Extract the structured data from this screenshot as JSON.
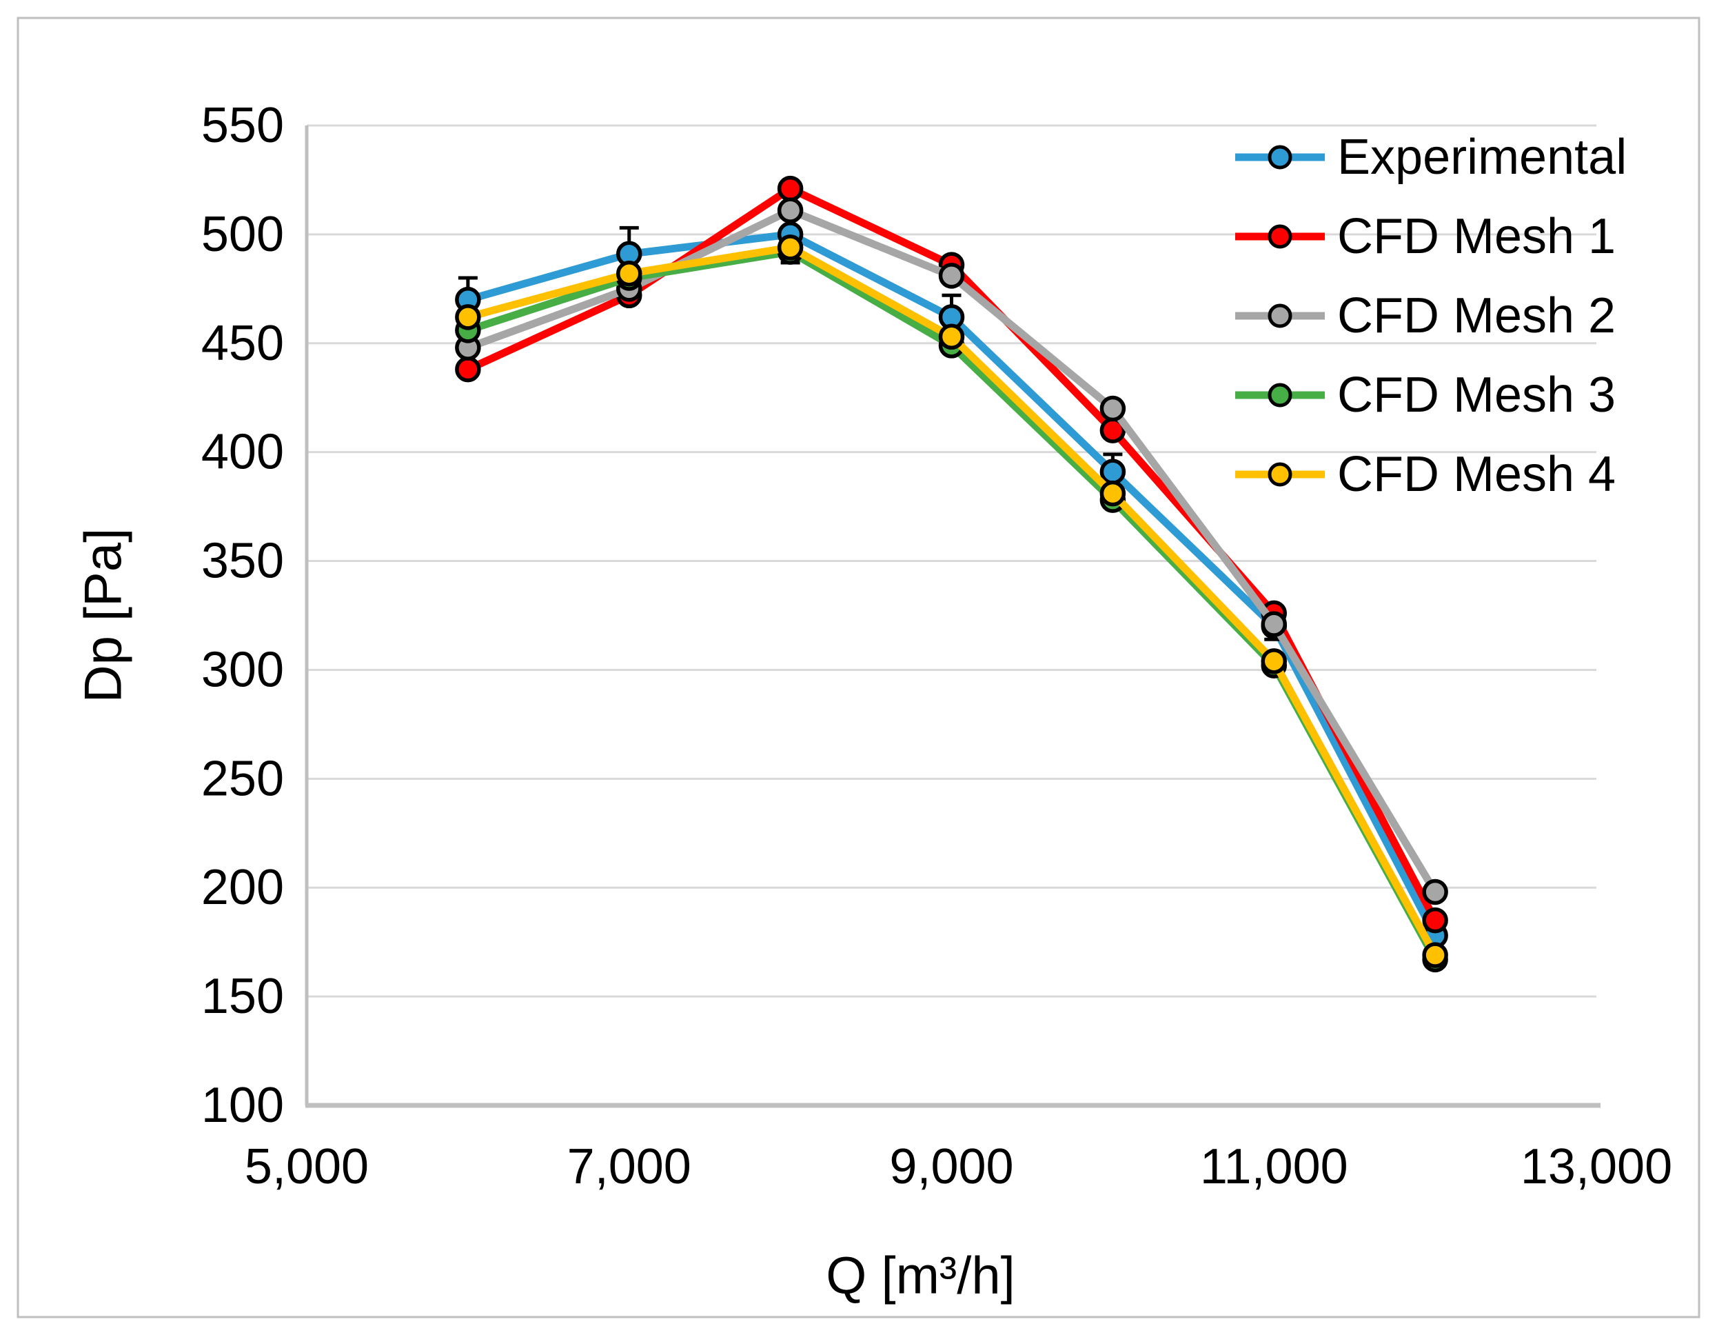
{
  "figure": {
    "border_color": "#BFBFBF",
    "background": "#FFFFFF"
  },
  "axes": {
    "x_title": "Q [m³/h]",
    "y_title": "Dp [Pa]",
    "axis_line_color": "#BFBFBF",
    "gridline_color": "#D9D9D9",
    "text_color": "#000000"
  },
  "chart_data": {
    "type": "line",
    "title": "",
    "xlabel": "Q [m³/h]",
    "ylabel": "Dp [Pa]",
    "xlim": [
      5000,
      13000
    ],
    "ylim": [
      100,
      550
    ],
    "x_ticks": [
      5000,
      7000,
      9000,
      11000,
      13000
    ],
    "x_tick_labels": [
      "5,000",
      "7,000",
      "9,000",
      "11,000",
      "13,000"
    ],
    "y_ticks": [
      100,
      150,
      200,
      250,
      300,
      350,
      400,
      450,
      500,
      550
    ],
    "grid": "horizontal-only",
    "legend_position": "inside-top-right",
    "x": [
      6000,
      7000,
      8000,
      9000,
      10000,
      11000,
      12000
    ],
    "series": [
      {
        "name": "Experimental",
        "color": "#2E9BD5",
        "marker": "circle",
        "values": [
          470,
          491,
          500,
          462,
          391,
          320,
          178
        ],
        "error_bars": [
          10,
          12,
          13,
          10,
          8,
          6,
          6
        ]
      },
      {
        "name": "CFD Mesh 1",
        "color": "#FF0000",
        "marker": "circle",
        "values": [
          438,
          472,
          521,
          486,
          410,
          326,
          185
        ]
      },
      {
        "name": "CFD Mesh 2",
        "color": "#A6A6A6",
        "marker": "circle",
        "values": [
          448,
          475,
          511,
          481,
          420,
          321,
          198
        ]
      },
      {
        "name": "CFD Mesh 3",
        "color": "#47AD45",
        "marker": "circle",
        "values": [
          456,
          480,
          492,
          449,
          378,
          302,
          167
        ]
      },
      {
        "name": "CFD Mesh 4",
        "color": "#FFC000",
        "marker": "circle",
        "values": [
          462,
          482,
          494,
          453,
          381,
          304,
          169
        ]
      }
    ]
  }
}
